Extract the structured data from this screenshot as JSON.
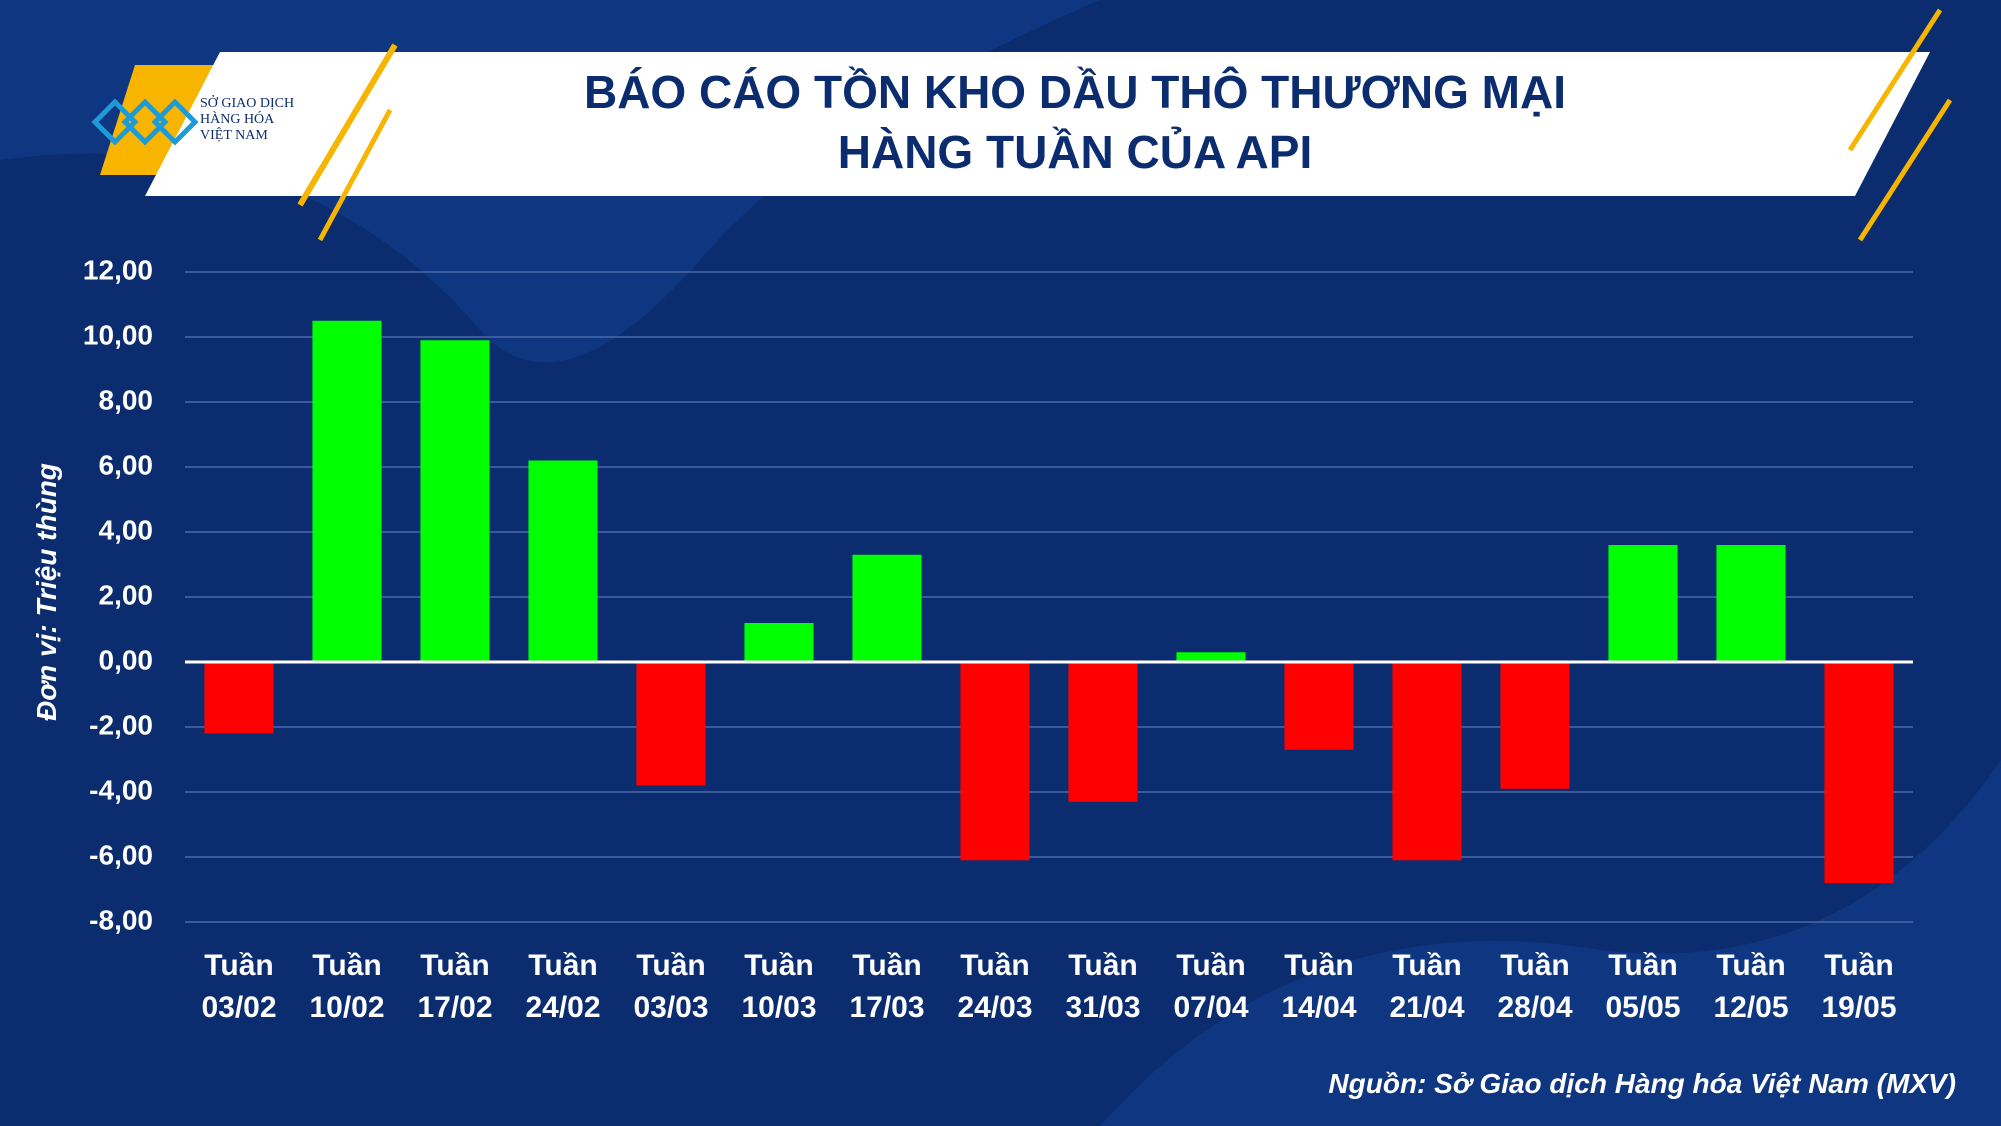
{
  "logo": "SỞ GIAO DỊCH HÀNG HÓA VIỆT NAM",
  "chart_data": {
    "type": "bar",
    "title": "BÁO CÁO TỒN KHO DẦU THÔ THƯƠNG MẠI HÀNG TUẦN CỦA API",
    "y_label": "Đơn vị: Triệu thùng",
    "source": "Nguồn: Sở Giao dịch Hàng hóa Việt Nam (MXV)",
    "categories": [
      "Tuần 03/02",
      "Tuần 10/02",
      "Tuần 17/02",
      "Tuần 24/02",
      "Tuần 03/03",
      "Tuần 10/03",
      "Tuần 17/03",
      "Tuần 24/03",
      "Tuần 31/03",
      "Tuần 07/04",
      "Tuần 14/04",
      "Tuần 21/04",
      "Tuần 28/04",
      "Tuần 05/05",
      "Tuần 12/05",
      "Tuần 19/05"
    ],
    "values": [
      -2.2,
      10.5,
      9.9,
      6.2,
      -3.8,
      1.2,
      3.3,
      -6.1,
      -4.3,
      0.3,
      -2.7,
      -6.1,
      -3.9,
      3.6,
      3.6,
      -6.8
    ],
    "positive_color": "#00ff00",
    "negative_color": "#ff0000",
    "ylim": [
      -8,
      12
    ],
    "yticks": [
      {
        "value": -8,
        "label": "-8,00"
      },
      {
        "value": -6,
        "label": "-6,00"
      },
      {
        "value": -4,
        "label": "-4,00"
      },
      {
        "value": -2,
        "label": "-2,00"
      },
      {
        "value": 0,
        "label": "0,00"
      },
      {
        "value": 2,
        "label": "2,00"
      },
      {
        "value": 4,
        "label": "4,00"
      },
      {
        "value": 6,
        "label": "6,00"
      },
      {
        "value": 8,
        "label": "8,00"
      },
      {
        "value": 10,
        "label": "10,00"
      },
      {
        "value": 12,
        "label": "12,00"
      }
    ],
    "grid": true
  }
}
